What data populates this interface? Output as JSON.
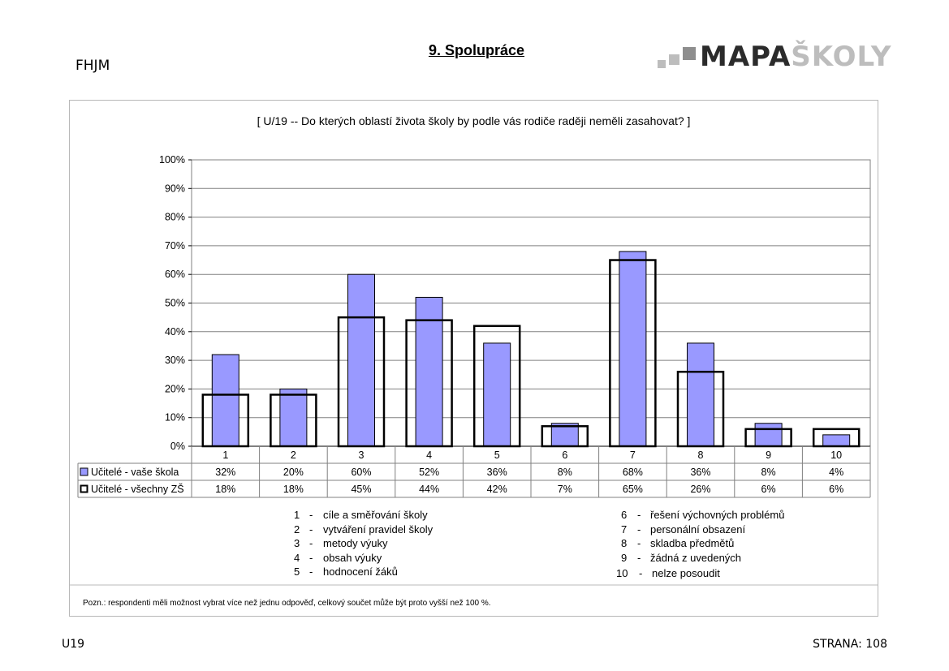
{
  "header": {
    "title": "9. Spolupráce",
    "school_code": "FHJM",
    "logo_part1": "MAPA",
    "logo_part2": "ŠKOLY"
  },
  "chart_data": {
    "type": "bar",
    "title": "[ U/19 -- Do kterých oblastí života školy by podle vás rodiče raději neměli zasahovat? ]",
    "categories": [
      "1",
      "2",
      "3",
      "4",
      "5",
      "6",
      "7",
      "8",
      "9",
      "10"
    ],
    "series": [
      {
        "name": "Učitelé - vaše škola",
        "values": [
          32,
          20,
          60,
          52,
          36,
          8,
          68,
          36,
          8,
          4
        ],
        "labels": [
          "32%",
          "20%",
          "60%",
          "52%",
          "36%",
          "8%",
          "68%",
          "36%",
          "8%",
          "4%"
        ],
        "color": "#9999ff",
        "style": "filled"
      },
      {
        "name": "Učitelé - všechny ZŠ",
        "values": [
          18,
          18,
          45,
          44,
          42,
          7,
          65,
          26,
          6,
          6
        ],
        "labels": [
          "18%",
          "18%",
          "45%",
          "44%",
          "42%",
          "7%",
          "65%",
          "26%",
          "6%",
          "6%"
        ],
        "color": "#000000",
        "style": "outline"
      }
    ],
    "ylim": [
      0,
      100
    ],
    "yticks": [
      "0%",
      "10%",
      "20%",
      "30%",
      "40%",
      "50%",
      "60%",
      "70%",
      "80%",
      "90%",
      "100%"
    ],
    "grid": true,
    "legend": "data-table"
  },
  "key": [
    {
      "num": "1",
      "text": "cíle a směřování školy"
    },
    {
      "num": "2",
      "text": "vytváření pravidel školy"
    },
    {
      "num": "3",
      "text": "metody výuky"
    },
    {
      "num": "4",
      "text": "obsah výuky"
    },
    {
      "num": "5",
      "text": "hodnocení žáků"
    },
    {
      "num": "6",
      "text": "řešení výchovných problémů"
    },
    {
      "num": "7",
      "text": "personální obsazení"
    },
    {
      "num": "8",
      "text": "skladba předmětů"
    },
    {
      "num": "9",
      "text": "žádná z uvedených"
    },
    {
      "num": "10",
      "text": "nelze posoudit"
    }
  ],
  "note": "Pozn.: respondenti měli možnost vybrat více než jednu odpověď, celkový součet může být proto vyšší než 100 %.",
  "footer": {
    "left": "U19",
    "right": "STRANA: 108"
  }
}
